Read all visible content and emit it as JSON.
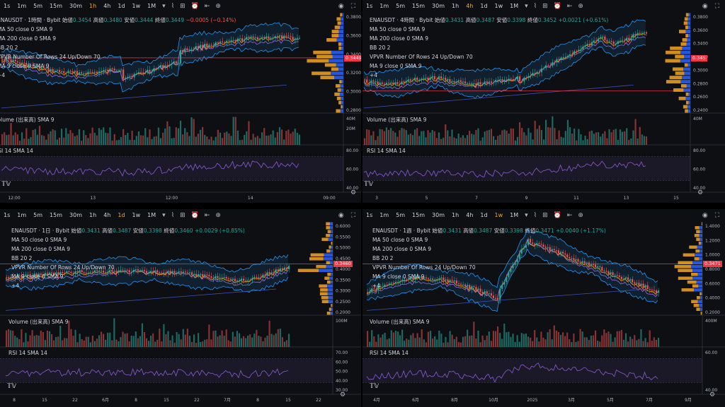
{
  "colors": {
    "up": "#26a69a",
    "down": "#ef5350",
    "bb": "#2196f3",
    "ma50": "#f7a600",
    "ma200": "#8e6bd8",
    "rsi": "#7e57c2",
    "vpUp": "#2962ff",
    "vpDown": "#f5a623",
    "bg": "#0e0f13",
    "grid": "#1c1f27",
    "red": "#f23645"
  },
  "toolbar": {
    "intervals": [
      "1s",
      "1m",
      "5m",
      "15m",
      "30m",
      "1h",
      "4h",
      "1d",
      "1w",
      "1M"
    ],
    "dropdown_icon": "chevron-down-icon",
    "tool_icons": [
      "indicators-icon",
      "compare-icon",
      "alert-icon",
      "replay-icon",
      "add-icon"
    ],
    "right_icons": [
      "camera-icon",
      "maximize-icon"
    ]
  },
  "indicators": {
    "ma50": "MA 50 close 0 SMA 9",
    "ma200": "MA 200 close 0 SMA 9",
    "bb": "BB 20 2",
    "vpvr": "VPVR Number Of Rows 24 Up/Down 70",
    "ma9": "MA 9 close 0 SMA 9",
    "volume": "Volume (出来高) SMA 9",
    "rsi": "RSI 14 SMA 14",
    "collapse": "^",
    "more": "+4"
  },
  "panes": [
    {
      "id": "tl",
      "active_interval": "1h",
      "symbol": "ENAUSDT · 1時間 · Bybit",
      "open_label": "始値",
      "open": "0.3454",
      "high_label": "高値",
      "high": "0.3480",
      "low_label": "安値",
      "low": "0.3444",
      "close_label": "終値",
      "close": "0.3449",
      "change": "−0.0005 (−0.14%)",
      "change_dir": "neg",
      "price_tag": "0.3449",
      "price_ticks": [
        "0.3800",
        "0.3600",
        "0.3400",
        "0.3200",
        "0.3000",
        "0.2800"
      ],
      "vol_ticks": [
        "40M",
        "20M"
      ],
      "rsi_ticks": [
        "80.00",
        "60.00",
        "40.00"
      ],
      "time_ticks": [
        "12:00",
        "13",
        "12:00",
        "14",
        "09:00"
      ]
    },
    {
      "id": "tr",
      "active_interval": "4h",
      "symbol": "ENAUSDT · 4時間 · Bybit",
      "open_label": "始値",
      "open": "0.3431",
      "high_label": "高値",
      "high": "0.3487",
      "low_label": "安値",
      "low": "0.3398",
      "close_label": "終値",
      "close": "0.3452",
      "change": "+0.0021 (+0.61%)",
      "change_dir": "pos",
      "price_tag": "0.345",
      "price_ticks": [
        "0.3800",
        "0.3600",
        "0.3400",
        "0.3200",
        "0.3000",
        "0.2800",
        "0.2600",
        "0.2400"
      ],
      "vol_ticks": [
        "40M"
      ],
      "rsi_ticks": [
        "80.00",
        "60.00",
        "40.00"
      ],
      "time_ticks": [
        "3",
        "5",
        "7",
        "9",
        "11",
        "13",
        "15"
      ]
    },
    {
      "id": "bl",
      "active_interval": "1d",
      "symbol": "ENAUSDT · 1日 · Bybit",
      "open_label": "始値",
      "open": "0.3431",
      "high_label": "高値",
      "high": "0.3487",
      "low_label": "安値",
      "low": "0.3398",
      "close_label": "終値",
      "close": "0.3460",
      "change": "+0.0029 (+0.85%)",
      "change_dir": "pos",
      "price_tag": "0.3460",
      "price_ticks": [
        "0.6000",
        "0.5500",
        "0.5000",
        "0.4500",
        "0.4000",
        "0.3500",
        "0.3000",
        "0.2500",
        "0.2000"
      ],
      "vol_ticks": [
        "100M"
      ],
      "rsi_ticks": [
        "70.00",
        "60.00",
        "50.00",
        "40.00",
        "30.00"
      ],
      "time_ticks": [
        "8",
        "15",
        "22",
        "6月",
        "8",
        "15",
        "22",
        "7月",
        "8",
        "15",
        "22"
      ]
    },
    {
      "id": "br",
      "active_interval": "1w",
      "symbol": "ENAUSDT · 1週 · Bybit",
      "open_label": "始値",
      "open": "0.3431",
      "high_label": "高値",
      "high": "0.3487",
      "low_label": "安値",
      "low": "0.3398",
      "close_label": "終値",
      "close": "0.3471",
      "change": "+0.0040 (+1.17%)",
      "change_dir": "pos",
      "price_tag": "0.3471",
      "price_ticks": [
        "1.4000",
        "1.2000",
        "1.0000",
        "0.8000",
        "0.6000",
        "0.4000",
        "0.2000"
      ],
      "vol_ticks": [
        "400M"
      ],
      "rsi_ticks": [
        "60.00",
        "40.00"
      ],
      "time_ticks": [
        "4月",
        "6月",
        "8月",
        "10月",
        "2025",
        "3月",
        "5月",
        "7月",
        "9月"
      ]
    }
  ]
}
